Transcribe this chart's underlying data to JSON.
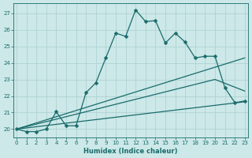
{
  "xlabel": "Humidex (Indice chaleur)",
  "ylabel": "",
  "bg_color": "#cce8e8",
  "grid_color": "#aacfcf",
  "line_color": "#1a6b6b",
  "series": [
    {
      "x": [
        0,
        1,
        2,
        3,
        4,
        5,
        6,
        7,
        8,
        9,
        10,
        11,
        12,
        13,
        14,
        15,
        16,
        17,
        18,
        19,
        20,
        21,
        22,
        23
      ],
      "y": [
        20.0,
        19.85,
        19.85,
        20.0,
        21.05,
        20.2,
        20.2,
        22.2,
        22.8,
        24.3,
        25.8,
        25.6,
        27.2,
        26.5,
        26.55,
        25.2,
        25.8,
        25.25,
        24.3,
        24.4,
        24.4,
        22.5,
        21.6,
        21.7
      ],
      "marker": "D",
      "markersize": 2.5,
      "linewidth": 0.9
    },
    {
      "x": [
        0,
        23
      ],
      "y": [
        20.0,
        24.3
      ],
      "marker": null,
      "linewidth": 0.9
    },
    {
      "x": [
        0,
        20,
        23
      ],
      "y": [
        20.0,
        23.0,
        22.3
      ],
      "marker": null,
      "linewidth": 0.9
    },
    {
      "x": [
        0,
        23
      ],
      "y": [
        20.0,
        21.65
      ],
      "marker": null,
      "linewidth": 0.9
    }
  ],
  "xlim": [
    -0.3,
    23.3
  ],
  "ylim": [
    19.5,
    27.6
  ],
  "xticks": [
    0,
    1,
    2,
    3,
    4,
    5,
    6,
    7,
    8,
    9,
    10,
    11,
    12,
    13,
    14,
    15,
    16,
    17,
    18,
    19,
    20,
    21,
    22,
    23
  ],
  "yticks": [
    20,
    21,
    22,
    23,
    24,
    25,
    26,
    27
  ],
  "tick_fontsize": 5.0,
  "label_fontsize": 6.0
}
